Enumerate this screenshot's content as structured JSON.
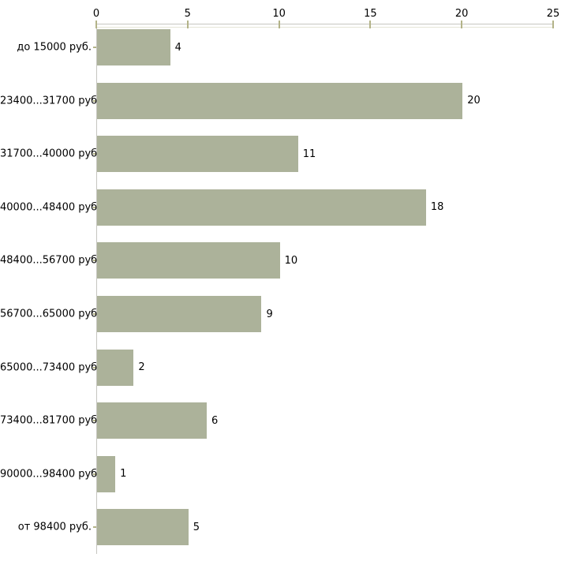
{
  "chart_data": {
    "type": "bar",
    "orientation": "horizontal",
    "title": "",
    "xlabel": "",
    "ylabel": "",
    "categories": [
      "до 15000 руб.",
      "23400...31700 руб.",
      "31700...40000 руб.",
      "40000...48400 руб.",
      "48400...56700 руб.",
      "56700...65000 руб.",
      "65000...73400 руб.",
      "73400...81700 руб.",
      "90000...98400 руб.",
      "от 98400 руб."
    ],
    "values": [
      4,
      20,
      11,
      18,
      10,
      9,
      2,
      6,
      1,
      5
    ],
    "value_labels": [
      "4",
      "20",
      "11",
      "18",
      "10",
      "9",
      "2",
      "6",
      "1",
      "5"
    ],
    "xlim": [
      0,
      25
    ],
    "x_ticks": [
      "0",
      "5",
      "10",
      "15",
      "20",
      "25"
    ],
    "grid": false,
    "legend": false,
    "colors": {
      "bar": "#acb29a",
      "axis_line": "#c6c6c0",
      "axis_line_light": "#e5e5d8",
      "tick": "#b3b388",
      "text": "#000000"
    }
  }
}
